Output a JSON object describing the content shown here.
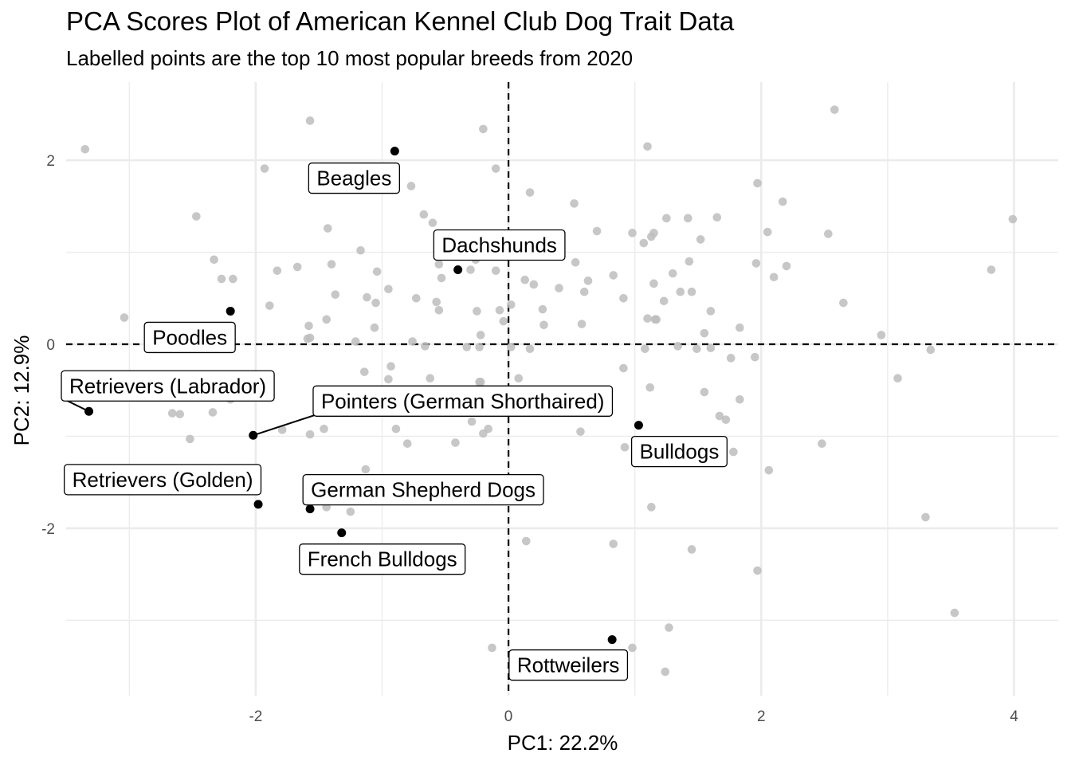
{
  "chart_data": {
    "type": "scatter",
    "title": "PCA Scores Plot of American Kennel Club Dog Trait Data",
    "subtitle": "Labelled points are the top 10 most popular breeds from 2020",
    "xlabel": "PC1: 22.2%",
    "ylabel": "PC2: 12.9%",
    "xlim": [
      -3.5,
      4.35
    ],
    "ylim": [
      -3.82,
      2.85
    ],
    "x_ticks": [
      -2,
      0,
      2,
      4
    ],
    "y_ticks": [
      -2,
      0,
      2
    ],
    "x_tick_labels": [
      "-2",
      "0",
      "2",
      "4"
    ],
    "y_tick_labels": [
      "-2",
      "0",
      "2"
    ],
    "grid": true,
    "reference_lines": {
      "x": 0,
      "y": 0,
      "style": "dashed"
    },
    "colors": {
      "background_points": "#bdbdbd",
      "highlight_points": "#000000",
      "grid": "#ebebeb"
    },
    "labelled_points": [
      {
        "label": "Beagles",
        "x": -0.9,
        "y": 2.1
      },
      {
        "label": "Dachshunds",
        "x": -0.4,
        "y": 0.81
      },
      {
        "label": "Poodles",
        "x": -2.2,
        "y": 0.36
      },
      {
        "label": "Retrievers (Labrador)",
        "x": -3.32,
        "y": -0.73
      },
      {
        "label": "Pointers (German Shorthaired)",
        "x": -2.02,
        "y": -0.99
      },
      {
        "label": "Bulldogs",
        "x": 1.03,
        "y": -0.88
      },
      {
        "label": "Retrievers (Golden)",
        "x": -1.98,
        "y": -1.74
      },
      {
        "label": "German Shepherd Dogs",
        "x": -1.57,
        "y": -1.79
      },
      {
        "label": "French Bulldogs",
        "x": -1.32,
        "y": -2.05
      },
      {
        "label": "Rottweilers",
        "x": 0.82,
        "y": -3.21
      }
    ],
    "background_points": [
      [
        -3.35,
        2.12
      ],
      [
        -1.57,
        2.43
      ],
      [
        -0.2,
        2.34
      ],
      [
        2.58,
        2.55
      ],
      [
        1.1,
        2.15
      ],
      [
        -1.93,
        1.91
      ],
      [
        -0.1,
        1.91
      ],
      [
        -0.77,
        1.72
      ],
      [
        0.17,
        1.65
      ],
      [
        0.52,
        1.53
      ],
      [
        1.97,
        1.75
      ],
      [
        2.17,
        1.55
      ],
      [
        3.99,
        1.36
      ],
      [
        -2.47,
        1.39
      ],
      [
        -0.67,
        1.41
      ],
      [
        -0.6,
        1.32
      ],
      [
        -1.43,
        1.26
      ],
      [
        0.7,
        1.23
      ],
      [
        0.98,
        1.21
      ],
      [
        1.15,
        1.21
      ],
      [
        1.25,
        1.37
      ],
      [
        1.42,
        1.37
      ],
      [
        1.65,
        1.38
      ],
      [
        2.05,
        1.22
      ],
      [
        2.53,
        1.2
      ],
      [
        1.13,
        1.17
      ],
      [
        1.52,
        1.14
      ],
      [
        1.07,
        1.1
      ],
      [
        -1.17,
        1.02
      ],
      [
        -2.33,
        0.92
      ],
      [
        -1.4,
        0.87
      ],
      [
        -0.55,
        0.87
      ],
      [
        -0.3,
        0.81
      ],
      [
        0.53,
        0.89
      ],
      [
        1.96,
        0.88
      ],
      [
        2.2,
        0.85
      ],
      [
        3.82,
        0.81
      ],
      [
        -1.83,
        0.8
      ],
      [
        -1.67,
        0.84
      ],
      [
        -1.04,
        0.79
      ],
      [
        -0.26,
        0.92
      ],
      [
        -0.1,
        0.8
      ],
      [
        0.13,
        0.7
      ],
      [
        0.2,
        0.65
      ],
      [
        0.4,
        0.61
      ],
      [
        0.63,
        0.69
      ],
      [
        0.83,
        0.75
      ],
      [
        1.3,
        0.77
      ],
      [
        1.15,
        0.66
      ],
      [
        1.43,
        0.9
      ],
      [
        2.1,
        0.73
      ],
      [
        -2.27,
        0.71
      ],
      [
        -2.18,
        0.71
      ],
      [
        -0.53,
        0.72
      ],
      [
        -0.95,
        0.6
      ],
      [
        -1.37,
        0.54
      ],
      [
        -1.12,
        0.51
      ],
      [
        -0.73,
        0.5
      ],
      [
        -0.57,
        0.46
      ],
      [
        -0.55,
        0.37
      ],
      [
        -1.05,
        0.45
      ],
      [
        -0.25,
        0.36
      ],
      [
        -0.07,
        0.37
      ],
      [
        0.02,
        0.43
      ],
      [
        0.27,
        0.38
      ],
      [
        0.6,
        0.57
      ],
      [
        0.91,
        0.5
      ],
      [
        1.23,
        0.47
      ],
      [
        1.36,
        0.57
      ],
      [
        1.45,
        0.57
      ],
      [
        2.65,
        0.45
      ],
      [
        -1.89,
        0.42
      ],
      [
        -3.04,
        0.29
      ],
      [
        -1.44,
        0.27
      ],
      [
        -1.58,
        0.2
      ],
      [
        -1.06,
        0.18
      ],
      [
        -0.22,
        0.1
      ],
      [
        -0.04,
        0.25
      ],
      [
        0.28,
        0.21
      ],
      [
        0.58,
        0.22
      ],
      [
        1.1,
        0.28
      ],
      [
        1.17,
        0.27
      ],
      [
        1.16,
        0.27
      ],
      [
        1.6,
        0.36
      ],
      [
        1.55,
        0.12
      ],
      [
        1.83,
        0.18
      ],
      [
        -1.59,
        0.06
      ],
      [
        -1.57,
        0.07
      ],
      [
        -1.21,
        0.03
      ],
      [
        -0.76,
        0.03
      ],
      [
        -0.66,
        -0.02
      ],
      [
        -0.33,
        -0.03
      ],
      [
        -0.23,
        -0.03
      ],
      [
        0.02,
        -0.03
      ],
      [
        0.17,
        -0.05
      ],
      [
        1.08,
        -0.05
      ],
      [
        1.34,
        -0.02
      ],
      [
        1.49,
        -0.05
      ],
      [
        1.6,
        -0.04
      ],
      [
        1.76,
        -0.15
      ],
      [
        1.95,
        -0.14
      ],
      [
        2.95,
        0.1
      ],
      [
        3.34,
        -0.06
      ],
      [
        -0.93,
        -0.24
      ],
      [
        -1.14,
        -0.3
      ],
      [
        -0.95,
        -0.38
      ],
      [
        -0.62,
        -0.37
      ],
      [
        -0.23,
        -0.41
      ],
      [
        -0.22,
        -0.41
      ],
      [
        0.08,
        -0.37
      ],
      [
        0.91,
        -0.26
      ],
      [
        1.12,
        -0.47
      ],
      [
        1.55,
        -0.52
      ],
      [
        -2.6,
        -0.76
      ],
      [
        -2.34,
        -0.74
      ],
      [
        -2.2,
        -0.6
      ],
      [
        -2.66,
        -0.75
      ],
      [
        -1.57,
        -0.98
      ],
      [
        -1.46,
        -0.92
      ],
      [
        -1.79,
        -0.93
      ],
      [
        -0.89,
        -0.92
      ],
      [
        -0.8,
        -1.08
      ],
      [
        -0.29,
        -0.84
      ],
      [
        -0.2,
        -0.97
      ],
      [
        -0.42,
        -1.07
      ],
      [
        -0.16,
        -0.92
      ],
      [
        0.57,
        -0.95
      ],
      [
        1.83,
        -0.6
      ],
      [
        1.67,
        -0.78
      ],
      [
        1.72,
        -0.82
      ],
      [
        3.08,
        -0.37
      ],
      [
        -2.52,
        -1.03
      ],
      [
        0.92,
        -1.12
      ],
      [
        1.78,
        -1.17
      ],
      [
        2.48,
        -1.08
      ],
      [
        2.06,
        -1.37
      ],
      [
        -2.5,
        -1.52
      ],
      [
        -1.44,
        -1.77
      ],
      [
        -1.25,
        -1.82
      ],
      [
        -1.13,
        -1.36
      ],
      [
        1.13,
        -1.77
      ],
      [
        0.14,
        -2.14
      ],
      [
        0.83,
        -2.17
      ],
      [
        1.45,
        -2.23
      ],
      [
        1.97,
        -2.46
      ],
      [
        3.3,
        -1.88
      ],
      [
        3.53,
        -2.92
      ],
      [
        -0.13,
        -3.3
      ],
      [
        0.98,
        -3.3
      ],
      [
        1.27,
        -3.08
      ],
      [
        1.24,
        -3.56
      ]
    ]
  }
}
